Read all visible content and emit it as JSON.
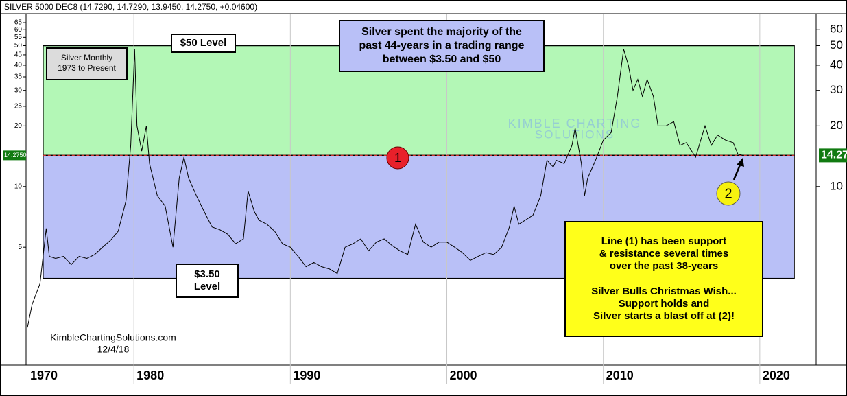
{
  "chart_data": {
    "type": "line",
    "header": "SILVER 5000 DEC8 (14.7290, 14.7290, 13.9450, 14.2750, +0.04600)",
    "log_scale": true,
    "x": [
      1973.2,
      1973.5,
      1974.0,
      1974.4,
      1974.6,
      1975.0,
      1975.5,
      1976.0,
      1976.5,
      1977.0,
      1977.5,
      1978.0,
      1978.5,
      1979.0,
      1979.5,
      1979.8,
      1980.05,
      1980.2,
      1980.5,
      1980.8,
      1981.0,
      1981.5,
      1982.0,
      1982.5,
      1982.9,
      1983.2,
      1983.5,
      1984.0,
      1984.5,
      1985.0,
      1985.5,
      1986.0,
      1986.5,
      1987.0,
      1987.3,
      1987.7,
      1988.0,
      1988.5,
      1989.0,
      1989.5,
      1990.0,
      1990.5,
      1991.0,
      1991.5,
      1992.0,
      1992.5,
      1993.0,
      1993.5,
      1994.0,
      1994.5,
      1995.0,
      1995.5,
      1996.0,
      1996.5,
      1997.0,
      1997.5,
      1998.0,
      1998.5,
      1999.0,
      1999.5,
      2000.0,
      2000.5,
      2001.0,
      2001.5,
      2002.0,
      2002.5,
      2003.0,
      2003.5,
      2004.0,
      2004.3,
      2004.6,
      2005.0,
      2005.5,
      2006.0,
      2006.4,
      2006.8,
      2007.0,
      2007.5,
      2008.0,
      2008.2,
      2008.6,
      2008.8,
      2009.0,
      2009.5,
      2010.0,
      2010.5,
      2010.9,
      2011.3,
      2011.6,
      2011.9,
      2012.2,
      2012.5,
      2012.8,
      2013.2,
      2013.5,
      2014.0,
      2014.5,
      2014.9,
      2015.3,
      2015.9,
      2016.5,
      2016.9,
      2017.3,
      2017.8,
      2018.3,
      2018.6,
      2018.92
    ],
    "series": [
      {
        "name": "SILVER 5000 DEC8",
        "color": "#000000",
        "values": [
          2.0,
          2.6,
          3.3,
          6.2,
          4.5,
          4.4,
          4.5,
          4.1,
          4.5,
          4.4,
          4.6,
          5.0,
          5.4,
          6.0,
          8.5,
          16,
          48,
          20,
          15,
          20,
          13,
          9,
          8,
          5.0,
          11,
          14,
          11,
          9,
          7.5,
          6.3,
          6.1,
          5.8,
          5.2,
          5.5,
          9.5,
          7.5,
          6.8,
          6.5,
          6.0,
          5.2,
          5.0,
          4.5,
          4.0,
          4.2,
          4.0,
          3.9,
          3.7,
          5.0,
          5.2,
          5.5,
          4.8,
          5.3,
          5.5,
          5.1,
          4.8,
          4.6,
          6.5,
          5.3,
          5.0,
          5.3,
          5.3,
          5.0,
          4.7,
          4.3,
          4.5,
          4.7,
          4.6,
          5.0,
          6.3,
          8.0,
          6.5,
          6.8,
          7.2,
          9.0,
          13.5,
          12.5,
          13.5,
          13.0,
          16.0,
          19.5,
          13,
          9.0,
          11,
          13.5,
          17,
          18.5,
          28,
          48,
          40,
          30,
          34,
          28,
          34,
          28,
          20,
          20,
          21,
          16,
          16.5,
          14,
          20,
          16,
          18,
          17,
          16.5,
          14.5,
          14.27
        ]
      }
    ],
    "xlim": [
      1973.2,
      2023.6
    ],
    "xticks": [
      {
        "value": 1970,
        "label": "1970"
      },
      {
        "value": 1980,
        "label": "1980"
      },
      {
        "value": 1990,
        "label": "1990"
      },
      {
        "value": 2000,
        "label": "2000"
      },
      {
        "value": 2010,
        "label": "2010"
      },
      {
        "value": 2020,
        "label": "2020"
      }
    ],
    "ylim": [
      1.3,
      72
    ],
    "yticks": [
      5,
      10,
      20,
      25,
      30,
      35,
      40,
      45,
      50,
      55,
      60,
      65
    ],
    "y2lim": [
      1.3,
      72
    ],
    "y2ticks": [
      10,
      20,
      30,
      40,
      50,
      60
    ],
    "last_label_left": "14.2750",
    "last_label_right": "14.27",
    "range_box": {
      "top": 50,
      "support": 14.275,
      "bottom": 3.5,
      "x": [
        1974.2,
        2022.2
      ],
      "upper_color": "#b3f7b6",
      "lower_color": "#b9c0f7",
      "line_color": "#d03030"
    },
    "annotations": {
      "period": [
        "Silver Monthly",
        "1973 to Present"
      ],
      "level_top": [
        "$50 Level"
      ],
      "summary": [
        "Silver spent the majority of the",
        "past 44-years in a trading range",
        "between $3.50 and $50"
      ],
      "level_bottom": [
        "$3.50",
        "Level"
      ],
      "note_a": [
        "Line (1) has been support",
        "& resistance several times",
        "over the past 38-years"
      ],
      "note_b": [
        "Silver Bulls Christmas Wish...",
        "Support holds and",
        "Silver starts a blast off at (2)!"
      ],
      "credit": [
        "KimbleChartingSolutions.com",
        "12/4/18"
      ],
      "marker_1": "1",
      "marker_2": "2",
      "logo": [
        "KIMBLE CHARTING",
        "SOLUTIONS"
      ]
    }
  }
}
